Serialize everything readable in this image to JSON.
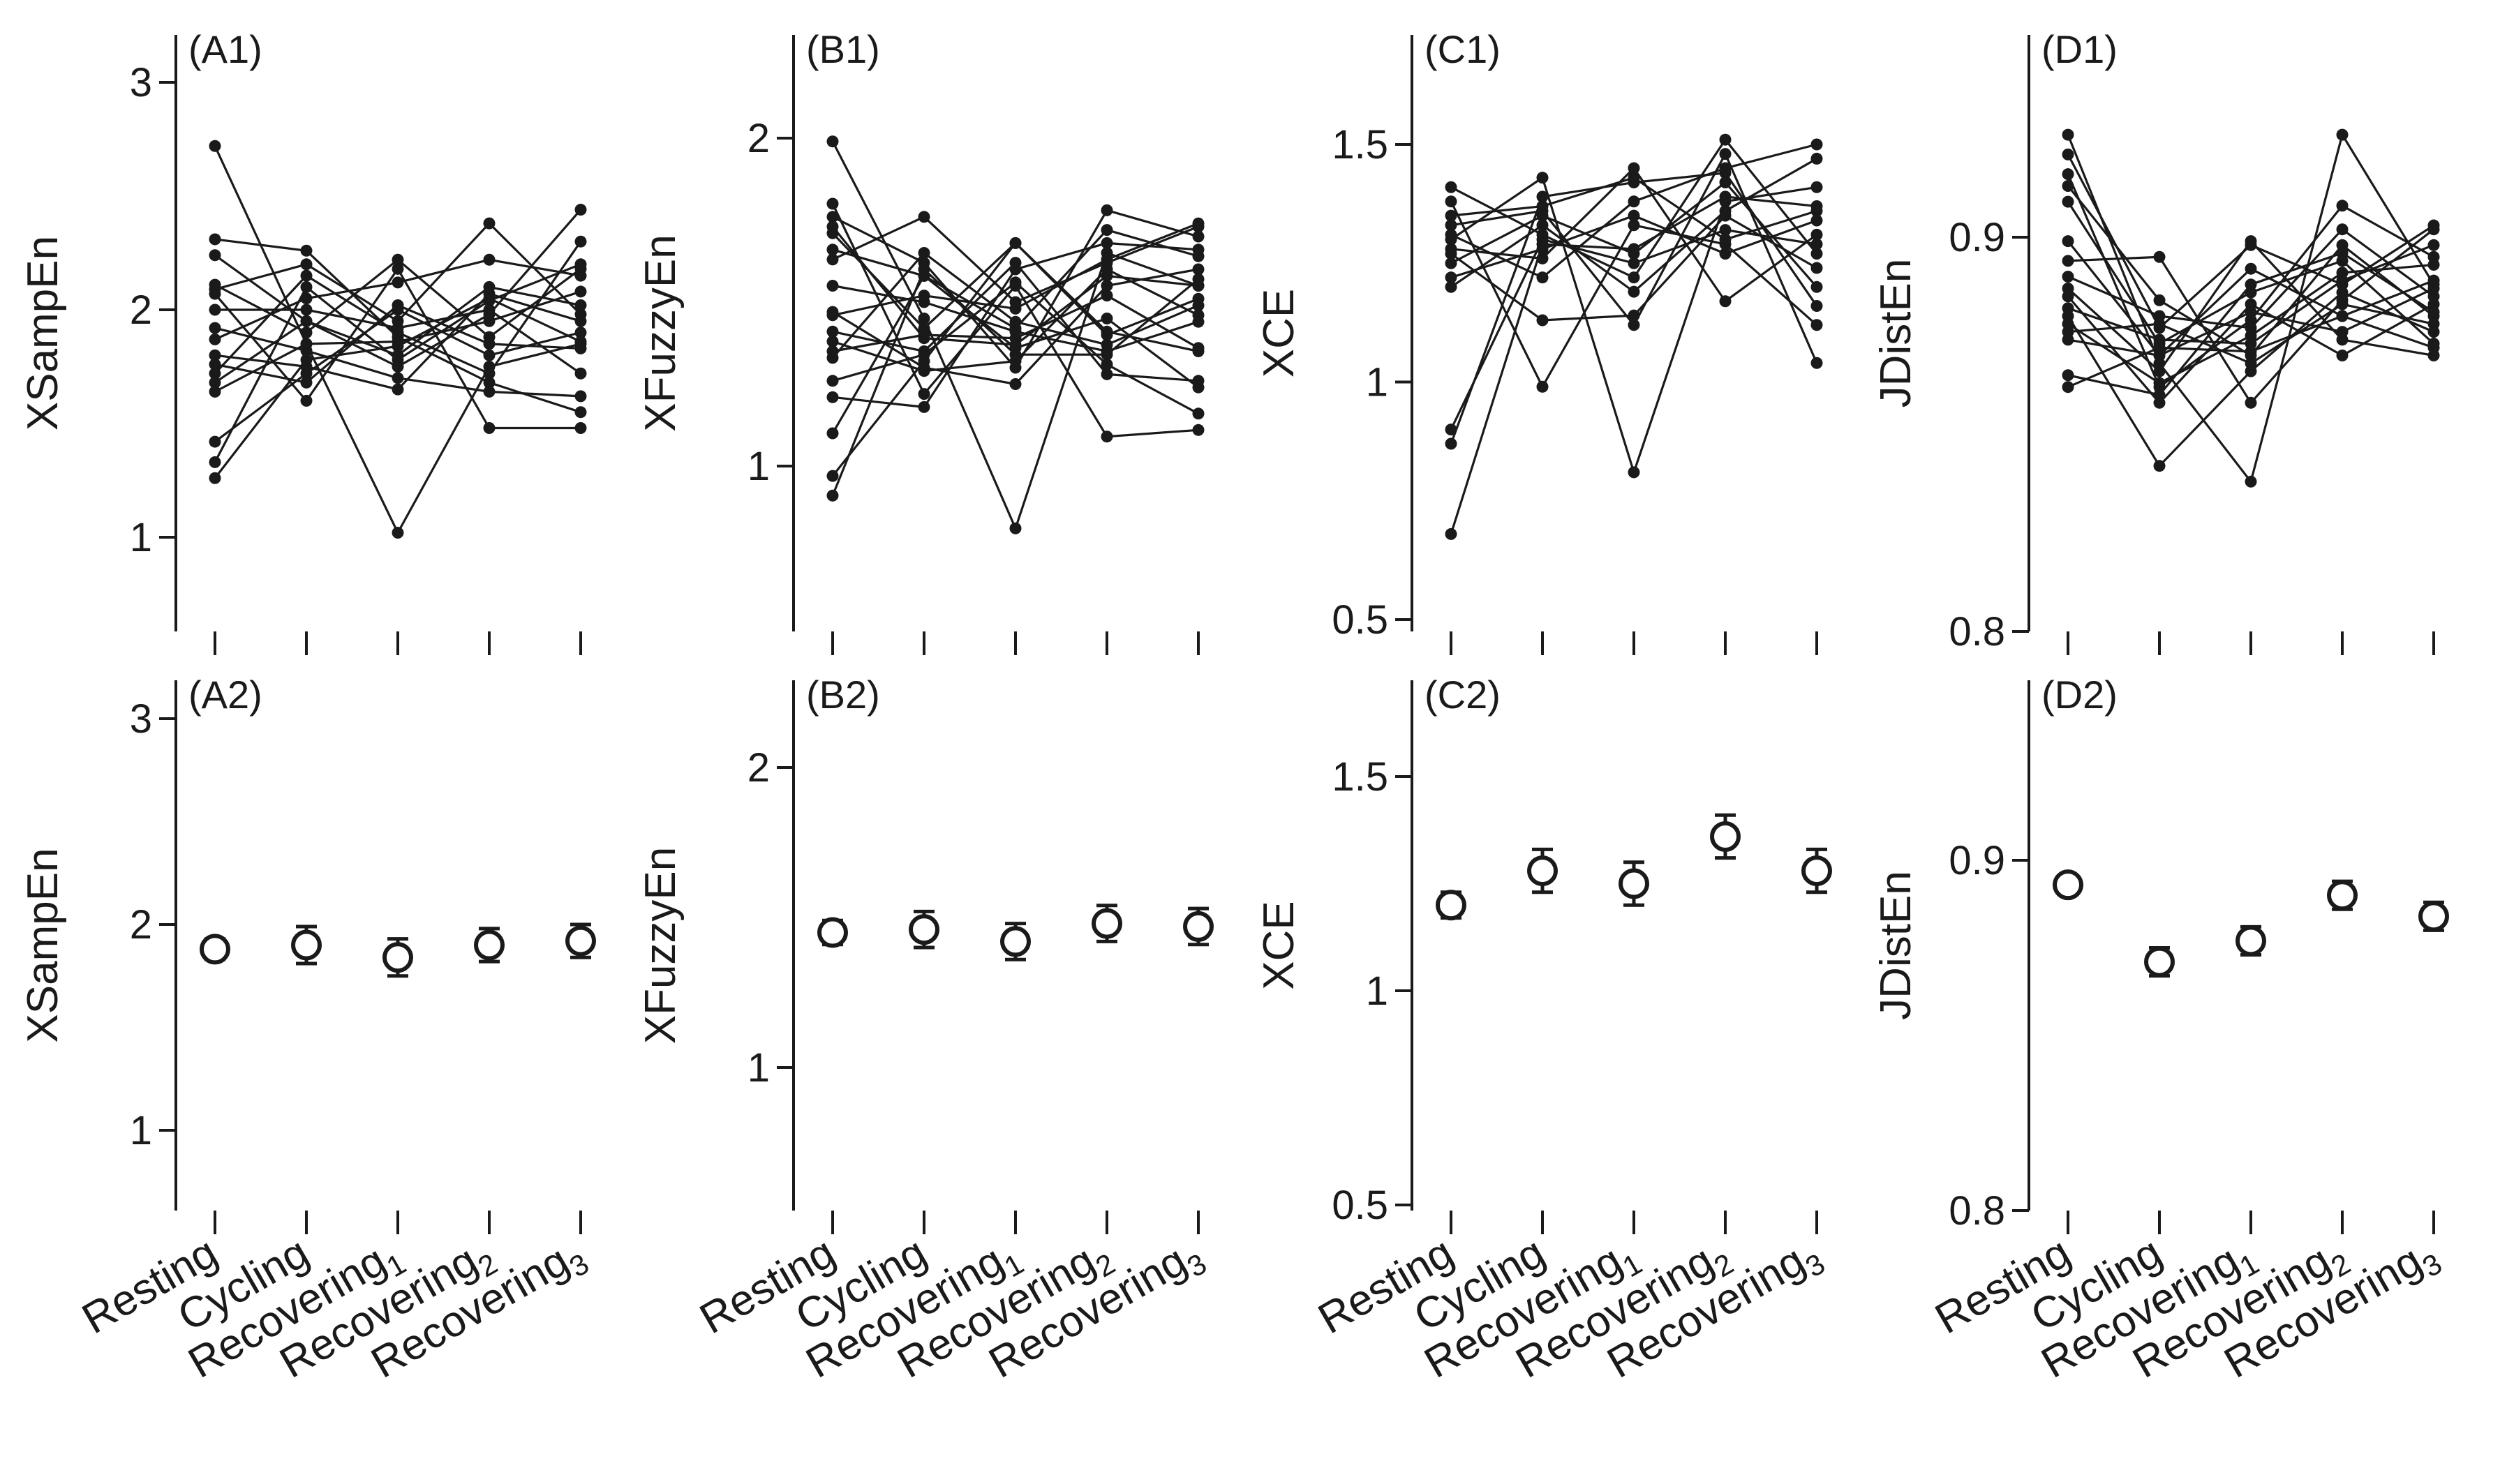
{
  "figure": {
    "x_tick_labels": [
      "Resting",
      "Cycling",
      "Recovering",
      "Recovering",
      "Recovering"
    ],
    "x_tick_subscripts": [
      "",
      "",
      "1",
      "2",
      "3"
    ],
    "colors": {
      "ink": "#1a1a1a",
      "background": "#ffffff"
    }
  },
  "chart_data": [
    {
      "panel": "(A1)",
      "type": "line",
      "ylabel": "XSampEn",
      "ylim": [
        0.62,
        3.15
      ],
      "yticks": [
        1,
        2,
        3
      ],
      "ytick_labels": [
        "1",
        "2",
        "3"
      ],
      "categories": [
        "Resting",
        "Cycling",
        "Recovering1",
        "Recovering2",
        "Recovering3"
      ],
      "series": [
        {
          "values": [
            2.72,
            1.85,
            1.02,
            1.75,
            1.85
          ]
        },
        {
          "values": [
            2.31,
            2.26,
            1.88,
            1.68,
            1.55
          ]
        },
        {
          "values": [
            2.24,
            1.95,
            1.8,
            2.1,
            2.02
          ]
        },
        {
          "values": [
            2.11,
            1.9,
            2.22,
            1.88,
            2.18
          ]
        },
        {
          "values": [
            2.09,
            2.2,
            1.95,
            2.38,
            1.98
          ]
        },
        {
          "values": [
            2.07,
            1.6,
            2.18,
            1.48,
            1.48
          ]
        },
        {
          "values": [
            2.0,
            2.0,
            1.92,
            2.0,
            1.72
          ]
        },
        {
          "values": [
            1.92,
            1.82,
            1.7,
            1.64,
            1.62
          ]
        },
        {
          "values": [
            1.87,
            2.05,
            2.12,
            2.22,
            2.15
          ]
        },
        {
          "values": [
            1.8,
            1.75,
            1.65,
            2.07,
            1.95
          ]
        },
        {
          "values": [
            1.76,
            1.68,
            2.02,
            1.85,
            1.83
          ]
        },
        {
          "values": [
            1.72,
            2.15,
            1.9,
            1.72,
            2.3
          ]
        },
        {
          "values": [
            1.68,
            1.95,
            1.75,
            1.98,
            2.44
          ]
        },
        {
          "values": [
            1.64,
            1.85,
            1.86,
            1.95,
            2.08
          ]
        },
        {
          "values": [
            1.42,
            1.72,
            2.0,
            1.8,
            1.9
          ]
        },
        {
          "values": [
            1.33,
            2.1,
            1.78,
            2.04,
            2.2
          ]
        },
        {
          "values": [
            1.26,
            1.78,
            1.84,
            2.05,
            1.86
          ]
        }
      ]
    },
    {
      "panel": "(B1)",
      "type": "line",
      "ylabel": "XFuzzyEn",
      "ylim": [
        0.53,
        2.3
      ],
      "yticks": [
        1,
        2
      ],
      "ytick_labels": [
        "1",
        "2"
      ],
      "categories": [
        "Resting",
        "Cycling",
        "Recovering1",
        "Recovering2",
        "Recovering3"
      ],
      "series": [
        {
          "values": [
            1.99,
            1.45,
            0.81,
            1.65,
            1.55
          ]
        },
        {
          "values": [
            1.8,
            1.22,
            1.55,
            1.09,
            1.11
          ]
        },
        {
          "values": [
            1.76,
            1.62,
            1.3,
            1.78,
            1.7
          ]
        },
        {
          "values": [
            1.73,
            1.39,
            1.37,
            1.58,
            1.55
          ]
        },
        {
          "values": [
            1.71,
            1.42,
            1.68,
            1.4,
            1.51
          ]
        },
        {
          "values": [
            1.66,
            1.58,
            1.42,
            1.72,
            1.64
          ]
        },
        {
          "values": [
            1.63,
            1.76,
            1.5,
            1.62,
            1.73
          ]
        },
        {
          "values": [
            1.55,
            1.5,
            1.41,
            1.35,
            1.44
          ]
        },
        {
          "values": [
            1.47,
            1.3,
            1.25,
            1.55,
            1.6
          ]
        },
        {
          "values": [
            1.46,
            1.52,
            1.48,
            1.63,
            1.74
          ]
        },
        {
          "values": [
            1.41,
            1.35,
            1.62,
            1.28,
            1.26
          ]
        },
        {
          "values": [
            1.38,
            1.29,
            1.32,
            1.6,
            1.46
          ]
        },
        {
          "values": [
            1.35,
            1.4,
            1.39,
            1.52,
            1.36
          ]
        },
        {
          "values": [
            1.33,
            1.65,
            1.44,
            1.37,
            1.49
          ]
        },
        {
          "values": [
            1.26,
            1.34,
            1.56,
            1.31,
            1.16
          ]
        },
        {
          "values": [
            1.21,
            1.18,
            1.6,
            1.68,
            1.66
          ]
        },
        {
          "values": [
            1.1,
            1.58,
            1.36,
            1.45,
            1.24
          ]
        },
        {
          "values": [
            0.97,
            1.32,
            1.68,
            1.41,
            1.35
          ]
        },
        {
          "values": [
            0.91,
            1.6,
            1.34,
            1.34,
            1.57
          ]
        }
      ]
    },
    {
      "panel": "(C1)",
      "type": "line",
      "ylabel": "XCE",
      "ylim": [
        0.47,
        1.72
      ],
      "yticks": [
        0.5,
        1,
        1.5
      ],
      "ytick_labels": [
        "0.5",
        "1",
        "1.5"
      ],
      "categories": [
        "Resting",
        "Cycling",
        "Recovering1",
        "Recovering2",
        "Recovering3"
      ],
      "series": [
        {
          "values": [
            1.41,
            1.31,
            1.22,
            1.51,
            1.27
          ]
        },
        {
          "values": [
            1.38,
            0.99,
            1.33,
            1.29,
            1.12
          ]
        },
        {
          "values": [
            1.35,
            1.37,
            1.43,
            1.3,
            1.36
          ]
        },
        {
          "values": [
            1.33,
            1.36,
            1.12,
            1.48,
            1.04
          ]
        },
        {
          "values": [
            1.31,
            1.22,
            1.38,
            1.45,
            1.5
          ]
        },
        {
          "values": [
            1.3,
            1.43,
            0.81,
            1.38,
            1.41
          ]
        },
        {
          "values": [
            1.28,
            1.26,
            1.45,
            1.17,
            1.31
          ]
        },
        {
          "values": [
            1.27,
            1.13,
            1.14,
            1.35,
            1.24
          ]
        },
        {
          "values": [
            1.25,
            1.35,
            1.27,
            1.42,
            1.2
          ]
        },
        {
          "values": [
            1.22,
            1.28,
            1.35,
            1.27,
            1.34
          ]
        },
        {
          "values": [
            1.2,
            1.33,
            1.19,
            1.36,
            1.47
          ]
        },
        {
          "values": [
            0.9,
            1.3,
            1.25,
            1.32,
            1.29
          ]
        },
        {
          "values": [
            0.87,
            1.39,
            1.42,
            1.44,
            1.16
          ]
        },
        {
          "values": [
            0.68,
            1.29,
            1.28,
            1.39,
            1.37
          ]
        }
      ]
    },
    {
      "panel": "(D1)",
      "type": "line",
      "ylabel": "JDistEn",
      "ylim": [
        0.8,
        0.946
      ],
      "yticks": [
        0.8,
        0.9
      ],
      "ytick_labels": [
        "0.8",
        "0.9"
      ],
      "categories": [
        "Resting",
        "Cycling",
        "Recovering1",
        "Recovering2",
        "Recovering3"
      ],
      "series": [
        {
          "values": [
            0.926,
            0.868,
            0.838,
            0.926,
            0.888
          ]
        },
        {
          "values": [
            0.921,
            0.877,
            0.898,
            0.888,
            0.903
          ]
        },
        {
          "values": [
            0.916,
            0.862,
            0.879,
            0.908,
            0.895
          ]
        },
        {
          "values": [
            0.913,
            0.884,
            0.87,
            0.898,
            0.88
          ]
        },
        {
          "values": [
            0.909,
            0.873,
            0.886,
            0.894,
            0.873
          ]
        },
        {
          "values": [
            0.899,
            0.87,
            0.892,
            0.88,
            0.889
          ]
        },
        {
          "values": [
            0.894,
            0.895,
            0.858,
            0.884,
            0.902
          ]
        },
        {
          "values": [
            0.89,
            0.88,
            0.877,
            0.902,
            0.885
          ]
        },
        {
          "values": [
            0.887,
            0.866,
            0.899,
            0.874,
            0.87
          ]
        },
        {
          "values": [
            0.885,
            0.858,
            0.883,
            0.87,
            0.883
          ]
        },
        {
          "values": [
            0.882,
            0.874,
            0.873,
            0.889,
            0.898
          ]
        },
        {
          "values": [
            0.88,
            0.842,
            0.866,
            0.886,
            0.876
          ]
        },
        {
          "values": [
            0.878,
            0.863,
            0.875,
            0.891,
            0.893
          ]
        },
        {
          "values": [
            0.876,
            0.878,
            0.868,
            0.883,
            0.878
          ]
        },
        {
          "values": [
            0.874,
            0.87,
            0.881,
            0.876,
            0.887
          ]
        },
        {
          "values": [
            0.865,
            0.86,
            0.888,
            0.896,
            0.881
          ]
        },
        {
          "values": [
            0.862,
            0.872,
            0.871,
            0.88,
            0.872
          ]
        }
      ]
    },
    {
      "panel": "(A2)",
      "type": "scatter",
      "ylabel": "XSampEn",
      "ylim": [
        0.62,
        3.15
      ],
      "yticks": [
        1,
        2,
        3
      ],
      "ytick_labels": [
        "1",
        "2",
        "3"
      ],
      "categories": [
        "Resting",
        "Cycling",
        "Recovering1",
        "Recovering2",
        "Recovering3"
      ],
      "mean": [
        1.88,
        1.9,
        1.84,
        1.9,
        1.92
      ],
      "error": [
        0.05,
        0.09,
        0.09,
        0.08,
        0.08
      ]
    },
    {
      "panel": "(B2)",
      "type": "scatter",
      "ylabel": "XFuzzyEn",
      "ylim": [
        0.53,
        2.3
      ],
      "yticks": [
        1,
        2
      ],
      "ytick_labels": [
        "1",
        "2"
      ],
      "categories": [
        "Resting",
        "Cycling",
        "Recovering1",
        "Recovering2",
        "Recovering3"
      ],
      "mean": [
        1.45,
        1.46,
        1.42,
        1.48,
        1.47
      ],
      "error": [
        0.04,
        0.06,
        0.06,
        0.06,
        0.06
      ]
    },
    {
      "panel": "(C2)",
      "type": "scatter",
      "ylabel": "XCE",
      "ylim": [
        0.47,
        1.72
      ],
      "yticks": [
        0.5,
        1,
        1.5
      ],
      "ytick_labels": [
        "0.5",
        "1",
        "1.5"
      ],
      "categories": [
        "Resting",
        "Cycling",
        "Recovering1",
        "Recovering2",
        "Recovering3"
      ],
      "mean": [
        1.2,
        1.28,
        1.25,
        1.36,
        1.28
      ],
      "error": [
        0.03,
        0.05,
        0.05,
        0.05,
        0.05
      ]
    },
    {
      "panel": "(D2)",
      "type": "scatter",
      "ylabel": "JDistEn",
      "ylim": [
        0.8,
        0.946
      ],
      "yticks": [
        0.8,
        0.9
      ],
      "ytick_labels": [
        "0.8",
        "0.9"
      ],
      "categories": [
        "Resting",
        "Cycling",
        "Recovering1",
        "Recovering2",
        "Recovering3"
      ],
      "mean": [
        0.893,
        0.871,
        0.877,
        0.89,
        0.884
      ],
      "error": [
        0.002,
        0.004,
        0.004,
        0.004,
        0.004
      ]
    }
  ]
}
